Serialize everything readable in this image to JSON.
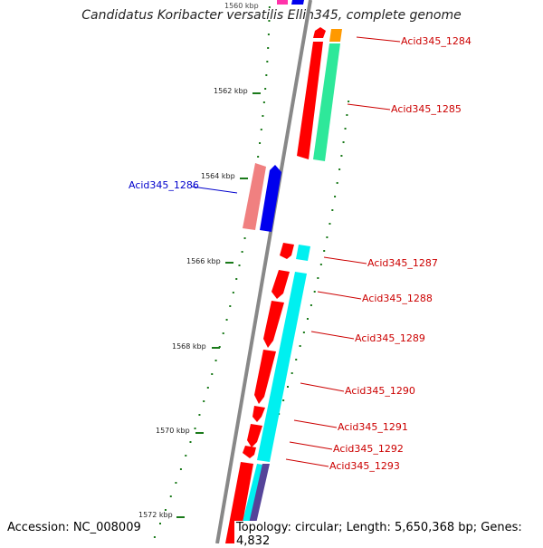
{
  "title": "Candidatus Koribacter versatilis Ellin345, complete genome",
  "accession": "Accession: NC_008009",
  "summary": "Topology: circular; Length: 5,650,368 bp; Genes: 4,832",
  "kbp_labels": [
    "1560 kbp",
    "1562 kbp",
    "1564 kbp",
    "1566 kbp",
    "1568 kbp",
    "1570 kbp",
    "1572 kbp"
  ],
  "gene_labels": [
    {
      "text": "Acid345_1284",
      "color": "#cc0000"
    },
    {
      "text": "Acid345_1285",
      "color": "#cc0000"
    },
    {
      "text": "Acid345_1286",
      "color": "#0000cc"
    },
    {
      "text": "Acid345_1287",
      "color": "#cc0000"
    },
    {
      "text": "Acid345_1288",
      "color": "#cc0000"
    },
    {
      "text": "Acid345_1289",
      "color": "#cc0000"
    },
    {
      "text": "Acid345_1290",
      "color": "#cc0000"
    },
    {
      "text": "Acid345_1291",
      "color": "#cc0000"
    },
    {
      "text": "Acid345_1292",
      "color": "#cc0000"
    },
    {
      "text": "Acid345_1293",
      "color": "#cc0000"
    }
  ],
  "colors": {
    "backbone": "#888888",
    "tick": "#1a7a1a",
    "gene_red": "#ff0000",
    "gene_blue": "#0000ee",
    "gene_pink": "#f08080",
    "gene_green": "#2ee89a",
    "gene_cyan": "#00f0f0",
    "gene_orange": "#ff9900",
    "gene_purple": "#554499",
    "gene_magenta": "#ff33aa"
  }
}
